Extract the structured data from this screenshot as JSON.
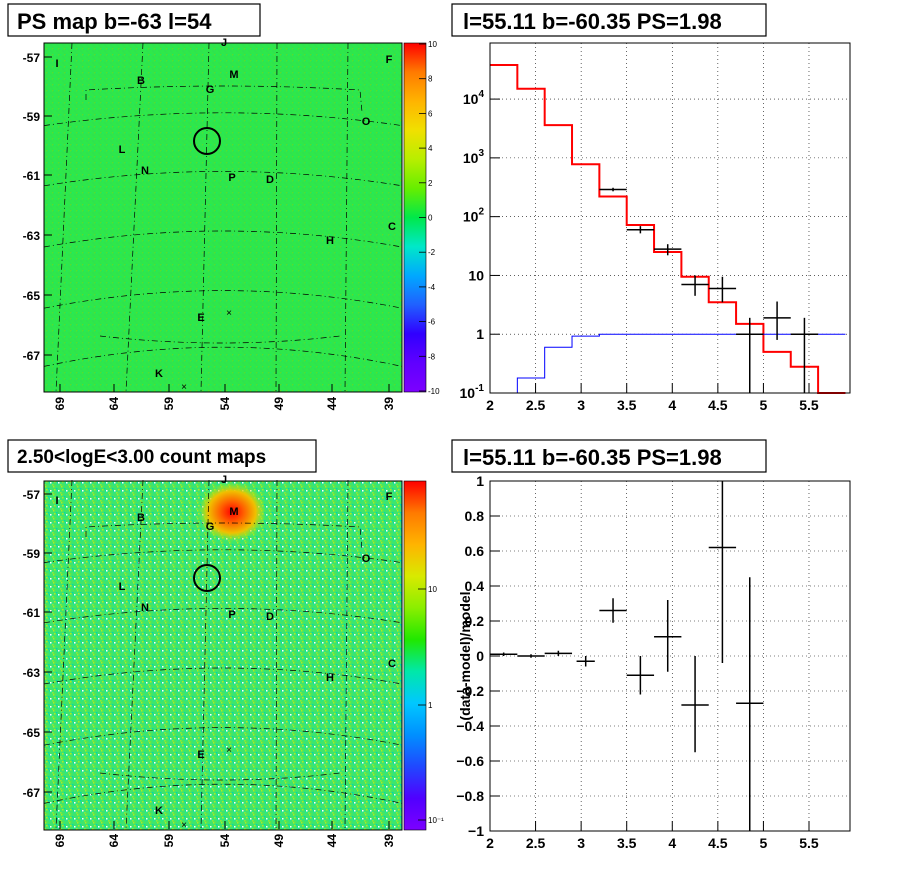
{
  "panels": {
    "tl": {
      "title": "PS map b=-63 l=54",
      "colorbar": {
        "ticks": [
          "10",
          "8",
          "6",
          "4",
          "2",
          "0",
          "-2",
          "-4",
          "-6",
          "-8",
          "-10"
        ],
        "stops": [
          "#ff0000",
          "#ff7a00",
          "#ffb400",
          "#f0e000",
          "#b8ee00",
          "#66ee00",
          "#00e84a",
          "#00e8c8",
          "#00a8ff",
          "#2060ff",
          "#3000ff",
          "#6000ff",
          "#7c00ff"
        ]
      }
    },
    "tr": {
      "title": "l=55.11 b=-60.35 PS=1.98"
    },
    "bl": {
      "title": "2.50<logE<3.00 count maps",
      "colorbar": {
        "ticks": [
          "10",
          "1",
          "10⁻¹"
        ],
        "stops": [
          "#ff0000",
          "#ff7a00",
          "#ffb400",
          "#d8ea00",
          "#8aee00",
          "#20e800",
          "#00e8a8",
          "#00c8ff",
          "#0090ff",
          "#2048ff",
          "#5000ff",
          "#7c00ff"
        ]
      }
    },
    "br": {
      "title": "l=55.11 b=-60.35 PS=1.98"
    }
  },
  "sky": {
    "lat_ticks": [
      "-57",
      "-59",
      "-61",
      "-63",
      "-65",
      "-67"
    ],
    "lon_ticks": [
      "69",
      "64",
      "59",
      "54",
      "49",
      "44",
      "39"
    ],
    "source_labels": [
      "J",
      "I",
      "F",
      "B",
      "M",
      "G",
      "O",
      "L",
      "N",
      "P",
      "D",
      "H",
      "C",
      "E",
      "K"
    ],
    "bg_map": "#2ee84a",
    "bg_counts": "#3fe46c"
  },
  "chart_data": [
    {
      "type": "line",
      "title": "l=55.11 b=-60.35 PS=1.98",
      "xlim": [
        2,
        5.95
      ],
      "ylim": [
        0.1,
        90000
      ],
      "yscale": "log",
      "x_ticks": [
        "2",
        "2.5",
        "3",
        "3.5",
        "4",
        "4.5",
        "5",
        "5.5"
      ],
      "y_ticks": [
        "10^{-1}",
        "1",
        "10",
        "10^{2}",
        "10^{3}",
        "10^{4}"
      ],
      "grid": true,
      "series": [
        {
          "color": "#ff0000",
          "edges": [
            2.0,
            2.3,
            2.6,
            2.9,
            3.2,
            3.5,
            3.8,
            4.1,
            4.4,
            4.7,
            5.0,
            5.3,
            5.6,
            5.9
          ],
          "values": [
            38000,
            15000,
            3600,
            780,
            220,
            72,
            25,
            9.5,
            3.5,
            1.5,
            0.5,
            0.28,
            0.1
          ]
        },
        {
          "color": "#0000ff",
          "edges": [
            2.0,
            2.3,
            2.6,
            2.9,
            3.2,
            3.5,
            3.8,
            4.1,
            4.4,
            4.7,
            5.0,
            5.3,
            5.6,
            5.9
          ],
          "values": [
            0.1,
            0.18,
            0.6,
            0.93,
            1.0,
            1.0,
            1.0,
            1.0,
            1.0,
            1.0,
            1.0,
            1.0,
            1.0
          ]
        },
        {
          "color": "#000000",
          "points": [
            {
              "x": 3.35,
              "y": 290,
              "xerr": 0.15,
              "ylo": 270,
              "yhi": 310
            },
            {
              "x": 3.65,
              "y": 60,
              "xerr": 0.15,
              "ylo": 52,
              "yhi": 69
            },
            {
              "x": 3.95,
              "y": 28,
              "xerr": 0.15,
              "ylo": 22,
              "yhi": 34
            },
            {
              "x": 4.25,
              "y": 7,
              "xerr": 0.15,
              "ylo": 4.5,
              "yhi": 10
            },
            {
              "x": 4.55,
              "y": 6,
              "xerr": 0.15,
              "ylo": 3.5,
              "yhi": 9.5
            },
            {
              "x": 4.85,
              "y": 1,
              "xerr": 0.15,
              "ylo": 0.1,
              "yhi": 1.9
            },
            {
              "x": 5.15,
              "y": 1.9,
              "xerr": 0.15,
              "ylo": 0.8,
              "yhi": 3.6
            },
            {
              "x": 5.45,
              "y": 1,
              "xerr": 0.15,
              "ylo": 0.1,
              "yhi": 1.9
            }
          ]
        }
      ]
    },
    {
      "type": "scatter",
      "title": "l=55.11 b=-60.35 PS=1.98",
      "ylabel": "(data-model)/model",
      "xlim": [
        2,
        5.95
      ],
      "ylim": [
        -1,
        1
      ],
      "x_ticks": [
        "2",
        "2.5",
        "3",
        "3.5",
        "4",
        "4.5",
        "5",
        "5.5"
      ],
      "y_ticks": [
        "−1",
        "−0.8",
        "−0.6",
        "−0.4",
        "−0.2",
        "0",
        "0.2",
        "0.4",
        "0.6",
        "0.8",
        "1"
      ],
      "grid": true,
      "points": [
        {
          "x": 2.15,
          "y": 0.01,
          "xerr": 0.15,
          "ylo": 0.0,
          "yhi": 0.02
        },
        {
          "x": 2.45,
          "y": 0.0,
          "xerr": 0.15,
          "ylo": -0.01,
          "yhi": 0.01
        },
        {
          "x": 2.75,
          "y": 0.015,
          "xerr": 0.15,
          "ylo": 0.0,
          "yhi": 0.03
        },
        {
          "x": 3.05,
          "y": -0.03,
          "xerr": 0.1,
          "ylo": -0.06,
          "yhi": 0.0
        },
        {
          "x": 3.35,
          "y": 0.26,
          "xerr": 0.15,
          "ylo": 0.19,
          "yhi": 0.33
        },
        {
          "x": 3.65,
          "y": -0.11,
          "xerr": 0.15,
          "ylo": -0.22,
          "yhi": 0.0
        },
        {
          "x": 3.95,
          "y": 0.11,
          "xerr": 0.15,
          "ylo": -0.09,
          "yhi": 0.32
        },
        {
          "x": 4.25,
          "y": -0.28,
          "xerr": 0.15,
          "ylo": -0.55,
          "yhi": 0.0
        },
        {
          "x": 4.55,
          "y": 0.62,
          "xerr": 0.15,
          "ylo": -0.04,
          "yhi": 1.0
        },
        {
          "x": 4.85,
          "y": -0.27,
          "xerr": 0.15,
          "ylo": -1.0,
          "yhi": 0.45
        }
      ]
    }
  ]
}
